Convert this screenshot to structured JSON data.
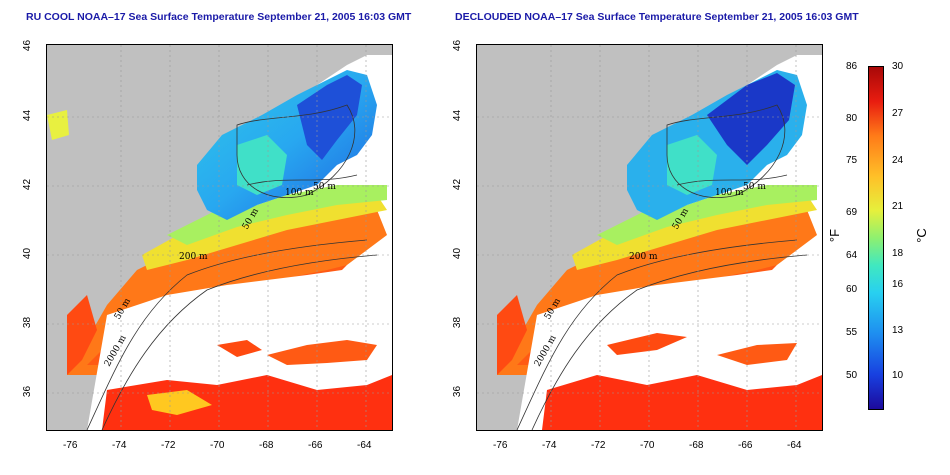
{
  "titles": {
    "left": "RU COOL NOAA–17 Sea Surface Temperature September 21, 2005 16:03 GMT",
    "right": "DECLOUDED NOAA–17 Sea Surface Temperature September 21, 2005 16:03 GMT"
  },
  "axes": {
    "lon_ticks": [
      "-76",
      "-74",
      "-72",
      "-70",
      "-68",
      "-66",
      "-64"
    ],
    "lat_ticks": [
      "46",
      "44",
      "42",
      "40",
      "38",
      "36"
    ]
  },
  "contour_labels": [
    "50 m",
    "100 m",
    "50 m",
    "200 m",
    "50 m",
    "2000 m"
  ],
  "colorbar": {
    "fahrenheit_ticks": [
      "86",
      "80",
      "75",
      "69",
      "64",
      "60",
      "55",
      "50"
    ],
    "celsius_ticks": [
      "30",
      "27",
      "24",
      "21",
      "18",
      "16",
      "13",
      "10"
    ],
    "unit_f": "°F",
    "unit_c": "°C"
  },
  "colors": {
    "land": "#c0c0c0",
    "cloud": "#ffffff",
    "title": "#1a1aa8"
  }
}
